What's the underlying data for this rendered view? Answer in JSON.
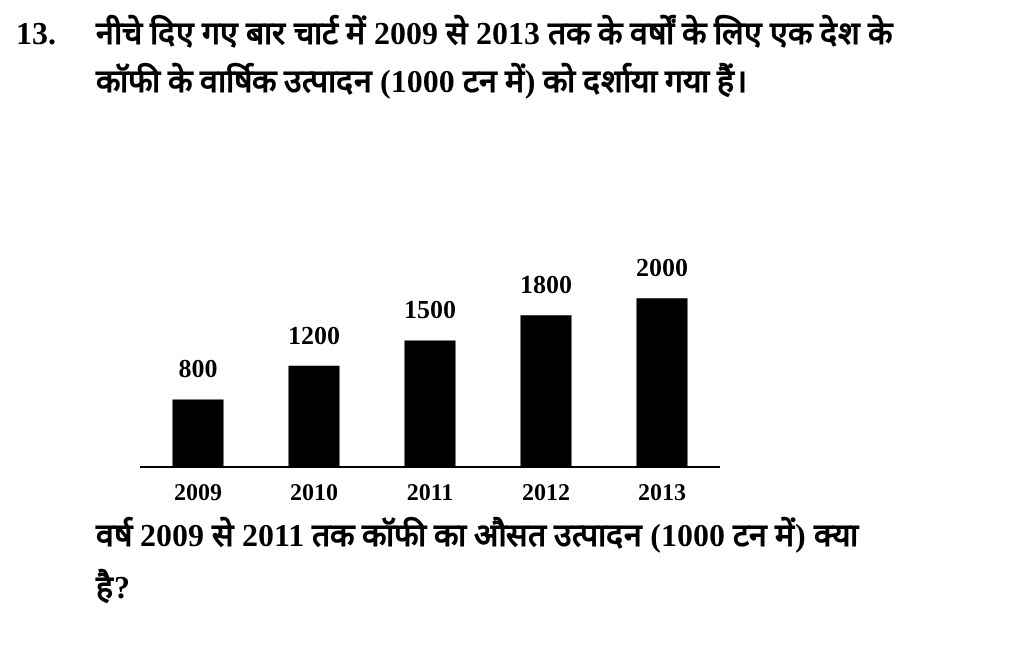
{
  "chart_data": {
    "type": "bar",
    "title": "13.\tनीचे दिए गए बार चार्ट में 2009 से 2013 तक के वर्षों के लिए एक देश के कॉफी के वार्षिक उत्पादन (1000 टन में) को दर्शाया गया हैं।",
    "categories": [
      "2009",
      "2010",
      "2011",
      "2012",
      "2013"
    ],
    "values": [
      800,
      1200,
      1500,
      1800,
      2000
    ],
    "color": "#000000",
    "data_labels": true,
    "grid": false,
    "annotations": [
      "वर्ष 2009 से 2011 तक कॉफी का औसत उत्पादन (1000 टन में) क्या है?"
    ]
  }
}
